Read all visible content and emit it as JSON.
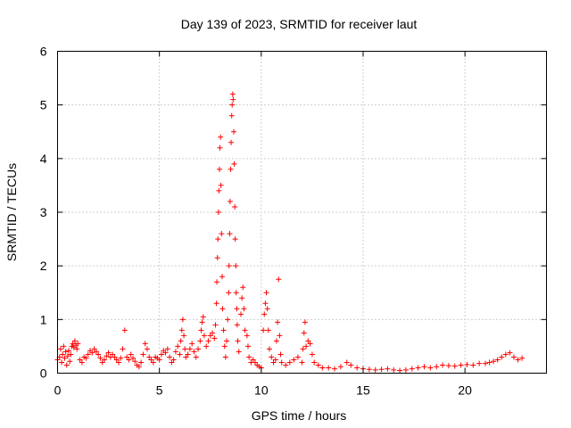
{
  "chart_data": {
    "type": "scatter",
    "title": "Day 139 of 2023, SRMTID for receiver laut",
    "xlabel": "GPS time / hours",
    "ylabel": "SRMTID / TECUs",
    "xlim": [
      0,
      24
    ],
    "ylim": [
      0,
      6
    ],
    "xticks": [
      0,
      5,
      10,
      15,
      20
    ],
    "yticks": [
      0,
      1,
      2,
      3,
      4,
      5,
      6
    ],
    "grid": true,
    "marker": "+",
    "color": "#ff0000",
    "series": [
      {
        "name": "SRMTID",
        "points": [
          [
            0.0,
            0.25
          ],
          [
            0.1,
            0.3
          ],
          [
            0.15,
            0.45
          ],
          [
            0.2,
            0.2
          ],
          [
            0.25,
            0.35
          ],
          [
            0.3,
            0.5
          ],
          [
            0.35,
            0.28
          ],
          [
            0.4,
            0.4
          ],
          [
            0.45,
            0.15
          ],
          [
            0.5,
            0.32
          ],
          [
            0.55,
            0.42
          ],
          [
            0.6,
            0.22
          ],
          [
            0.65,
            0.35
          ],
          [
            0.7,
            0.5
          ],
          [
            0.75,
            0.55
          ],
          [
            0.8,
            0.48
          ],
          [
            0.85,
            0.6
          ],
          [
            0.9,
            0.52
          ],
          [
            0.95,
            0.45
          ],
          [
            1.0,
            0.55
          ],
          [
            1.1,
            0.25
          ],
          [
            1.2,
            0.2
          ],
          [
            1.3,
            0.3
          ],
          [
            1.4,
            0.28
          ],
          [
            1.5,
            0.35
          ],
          [
            1.6,
            0.42
          ],
          [
            1.7,
            0.38
          ],
          [
            1.8,
            0.45
          ],
          [
            1.9,
            0.4
          ],
          [
            2.0,
            0.35
          ],
          [
            2.1,
            0.28
          ],
          [
            2.2,
            0.2
          ],
          [
            2.3,
            0.25
          ],
          [
            2.4,
            0.32
          ],
          [
            2.5,
            0.38
          ],
          [
            2.6,
            0.3
          ],
          [
            2.7,
            0.35
          ],
          [
            2.8,
            0.3
          ],
          [
            2.9,
            0.25
          ],
          [
            3.0,
            0.2
          ],
          [
            3.1,
            0.28
          ],
          [
            3.2,
            0.45
          ],
          [
            3.3,
            0.8
          ],
          [
            3.4,
            0.3
          ],
          [
            3.5,
            0.25
          ],
          [
            3.6,
            0.35
          ],
          [
            3.7,
            0.28
          ],
          [
            3.8,
            0.22
          ],
          [
            3.9,
            0.15
          ],
          [
            4.0,
            0.12
          ],
          [
            4.1,
            0.2
          ],
          [
            4.2,
            0.35
          ],
          [
            4.3,
            0.55
          ],
          [
            4.4,
            0.45
          ],
          [
            4.5,
            0.3
          ],
          [
            4.6,
            0.25
          ],
          [
            4.7,
            0.2
          ],
          [
            4.8,
            0.3
          ],
          [
            4.9,
            0.28
          ],
          [
            5.0,
            0.25
          ],
          [
            5.1,
            0.35
          ],
          [
            5.2,
            0.42
          ],
          [
            5.3,
            0.38
          ],
          [
            5.4,
            0.45
          ],
          [
            5.5,
            0.3
          ],
          [
            5.6,
            0.2
          ],
          [
            5.7,
            0.25
          ],
          [
            5.8,
            0.4
          ],
          [
            5.9,
            0.5
          ],
          [
            6.0,
            0.35
          ],
          [
            6.05,
            0.6
          ],
          [
            6.1,
            0.8
          ],
          [
            6.15,
            1.0
          ],
          [
            6.2,
            0.7
          ],
          [
            6.25,
            0.45
          ],
          [
            6.3,
            0.3
          ],
          [
            6.4,
            0.35
          ],
          [
            6.5,
            0.45
          ],
          [
            6.6,
            0.55
          ],
          [
            6.7,
            0.4
          ],
          [
            6.8,
            0.3
          ],
          [
            6.9,
            0.45
          ],
          [
            7.0,
            0.6
          ],
          [
            7.05,
            0.8
          ],
          [
            7.1,
            0.95
          ],
          [
            7.15,
            1.05
          ],
          [
            7.2,
            0.7
          ],
          [
            7.3,
            0.5
          ],
          [
            7.4,
            0.6
          ],
          [
            7.5,
            0.7
          ],
          [
            7.6,
            0.75
          ],
          [
            7.7,
            0.65
          ],
          [
            7.75,
            0.9
          ],
          [
            7.8,
            1.3
          ],
          [
            7.82,
            1.7
          ],
          [
            7.85,
            2.15
          ],
          [
            7.87,
            2.5
          ],
          [
            7.9,
            3.0
          ],
          [
            7.92,
            3.4
          ],
          [
            7.95,
            3.8
          ],
          [
            7.97,
            4.2
          ],
          [
            8.0,
            4.4
          ],
          [
            8.02,
            3.5
          ],
          [
            8.05,
            2.6
          ],
          [
            8.08,
            1.8
          ],
          [
            8.1,
            1.2
          ],
          [
            8.15,
            0.8
          ],
          [
            8.2,
            0.5
          ],
          [
            8.25,
            0.3
          ],
          [
            8.3,
            0.6
          ],
          [
            8.35,
            1.0
          ],
          [
            8.4,
            1.5
          ],
          [
            8.42,
            2.0
          ],
          [
            8.45,
            2.6
          ],
          [
            8.47,
            3.2
          ],
          [
            8.5,
            3.8
          ],
          [
            8.52,
            4.3
          ],
          [
            8.55,
            4.8
          ],
          [
            8.57,
            5.0
          ],
          [
            8.6,
            5.2
          ],
          [
            8.62,
            5.1
          ],
          [
            8.65,
            4.5
          ],
          [
            8.67,
            3.9
          ],
          [
            8.7,
            3.1
          ],
          [
            8.72,
            2.5
          ],
          [
            8.75,
            2.0
          ],
          [
            8.77,
            1.5
          ],
          [
            8.8,
            1.2
          ],
          [
            8.82,
            0.9
          ],
          [
            8.85,
            0.6
          ],
          [
            8.9,
            0.4
          ],
          [
            9.0,
            1.1
          ],
          [
            9.05,
            1.4
          ],
          [
            9.1,
            1.6
          ],
          [
            9.15,
            1.2
          ],
          [
            9.2,
            0.8
          ],
          [
            9.3,
            0.7
          ],
          [
            9.35,
            0.5
          ],
          [
            9.4,
            0.3
          ],
          [
            9.5,
            0.2
          ],
          [
            9.6,
            0.25
          ],
          [
            9.7,
            0.2
          ],
          [
            9.8,
            0.15
          ],
          [
            9.9,
            0.12
          ],
          [
            10.0,
            0.1
          ],
          [
            10.1,
            0.8
          ],
          [
            10.15,
            1.1
          ],
          [
            10.2,
            1.3
          ],
          [
            10.25,
            1.5
          ],
          [
            10.3,
            1.2
          ],
          [
            10.35,
            0.8
          ],
          [
            10.4,
            0.45
          ],
          [
            10.5,
            0.3
          ],
          [
            10.6,
            0.2
          ],
          [
            10.7,
            0.25
          ],
          [
            10.75,
            0.6
          ],
          [
            10.8,
            0.95
          ],
          [
            10.85,
            1.75
          ],
          [
            10.9,
            0.7
          ],
          [
            10.95,
            0.35
          ],
          [
            11.0,
            0.2
          ],
          [
            11.2,
            0.15
          ],
          [
            11.4,
            0.2
          ],
          [
            11.6,
            0.25
          ],
          [
            11.8,
            0.3
          ],
          [
            12.0,
            0.2
          ],
          [
            12.05,
            0.45
          ],
          [
            12.1,
            0.75
          ],
          [
            12.15,
            0.95
          ],
          [
            12.2,
            0.5
          ],
          [
            12.3,
            0.6
          ],
          [
            12.4,
            0.55
          ],
          [
            12.5,
            0.35
          ],
          [
            12.6,
            0.2
          ],
          [
            12.8,
            0.15
          ],
          [
            13.0,
            0.1
          ],
          [
            13.3,
            0.1
          ],
          [
            13.6,
            0.08
          ],
          [
            13.9,
            0.12
          ],
          [
            14.2,
            0.2
          ],
          [
            14.4,
            0.15
          ],
          [
            14.7,
            0.1
          ],
          [
            15.0,
            0.08
          ],
          [
            15.3,
            0.07
          ],
          [
            15.6,
            0.06
          ],
          [
            15.9,
            0.07
          ],
          [
            16.2,
            0.08
          ],
          [
            16.5,
            0.06
          ],
          [
            16.8,
            0.05
          ],
          [
            17.1,
            0.06
          ],
          [
            17.4,
            0.08
          ],
          [
            17.7,
            0.1
          ],
          [
            18.0,
            0.12
          ],
          [
            18.3,
            0.1
          ],
          [
            18.6,
            0.12
          ],
          [
            18.9,
            0.15
          ],
          [
            19.2,
            0.14
          ],
          [
            19.5,
            0.13
          ],
          [
            19.8,
            0.15
          ],
          [
            20.1,
            0.16
          ],
          [
            20.4,
            0.15
          ],
          [
            20.7,
            0.18
          ],
          [
            21.0,
            0.18
          ],
          [
            21.2,
            0.2
          ],
          [
            21.4,
            0.22
          ],
          [
            21.6,
            0.25
          ],
          [
            21.8,
            0.3
          ],
          [
            22.0,
            0.35
          ],
          [
            22.2,
            0.38
          ],
          [
            22.4,
            0.3
          ],
          [
            22.6,
            0.25
          ],
          [
            22.8,
            0.28
          ]
        ]
      }
    ]
  }
}
